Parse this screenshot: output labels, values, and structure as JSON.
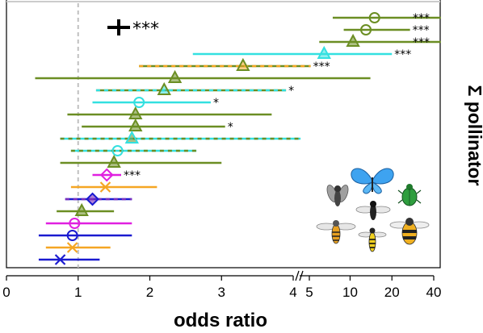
{
  "chart_data": {
    "type": "forest",
    "xlabel": "odds ratio",
    "side_title": "Σ pollinator",
    "xaxis": {
      "scale": "log-broken",
      "left_segment_range": [
        0,
        4
      ],
      "right_segment_range": [
        4,
        45
      ],
      "tick_labels": [
        {
          "value": 0,
          "label": "0",
          "segment": "left"
        },
        {
          "value": 1,
          "label": "1",
          "segment": "left"
        },
        {
          "value": 2,
          "label": "2",
          "segment": "left"
        },
        {
          "value": 3,
          "label": "3",
          "segment": "left"
        },
        {
          "value": 4,
          "label": "4",
          "segment": "left"
        },
        {
          "value": 5,
          "label": "5",
          "segment": "right"
        },
        {
          "value": 10,
          "label": "10",
          "segment": "right"
        },
        {
          "value": 20,
          "label": "20",
          "segment": "right"
        },
        {
          "value": 40,
          "label": "40",
          "segment": "right"
        }
      ],
      "reference_line": 1
    },
    "legend_marker": {
      "symbol": "plus",
      "label": "***"
    },
    "colors": {
      "olive": "#6b8e23",
      "cyan": "#33e0e0",
      "orange": "#f5a623",
      "magenta": "#e020e0",
      "blue": "#1a1ad0",
      "purple": "#7b2fbe",
      "refline": "#c0c0c0"
    },
    "rows": [
      {
        "estimate": 15,
        "lower": 7.5,
        "upper": 45,
        "color": "olive",
        "marker": "circle",
        "sig": "***"
      },
      {
        "estimate": 13,
        "lower": 9,
        "upper": 27,
        "color": "olive",
        "marker": "circle",
        "sig": "***"
      },
      {
        "estimate": 10.5,
        "lower": 6,
        "upper": 45,
        "color": "olive",
        "marker": "triangle",
        "sig": "***"
      },
      {
        "estimate": 6.5,
        "lower": 2.6,
        "upper": 20,
        "color": "cyan",
        "marker": "triangle",
        "sig": "***"
      },
      {
        "estimate": 3.3,
        "lower": 1.85,
        "upper": 5.2,
        "color": "olive",
        "color2": "orange",
        "dashed": true,
        "marker": "triangle",
        "sig": "***"
      },
      {
        "estimate": 2.35,
        "lower": 0.4,
        "upper": 14,
        "color": "olive",
        "marker": "triangle",
        "sig": ""
      },
      {
        "estimate": 2.2,
        "lower": 1.25,
        "upper": 3.9,
        "color": "olive",
        "color2": "cyan",
        "dashed": true,
        "marker": "triangle",
        "sig": "*"
      },
      {
        "estimate": 1.85,
        "lower": 1.2,
        "upper": 2.85,
        "color": "cyan",
        "marker": "circle",
        "sig": "*"
      },
      {
        "estimate": 1.8,
        "lower": 0.85,
        "upper": 3.7,
        "color": "olive",
        "marker": "triangle",
        "sig": ""
      },
      {
        "estimate": 1.8,
        "lower": 1.05,
        "upper": 3.05,
        "color": "olive",
        "marker": "triangle",
        "sig": "*"
      },
      {
        "estimate": 1.75,
        "lower": 0.75,
        "upper": 4.4,
        "color": "cyan",
        "color2": "olive",
        "dashed": true,
        "marker": "triangle",
        "sig": ""
      },
      {
        "estimate": 1.55,
        "lower": 0.9,
        "upper": 2.65,
        "color": "cyan",
        "color2": "olive",
        "dashed": true,
        "marker": "circle",
        "sig": ""
      },
      {
        "estimate": 1.5,
        "lower": 0.75,
        "upper": 3.0,
        "color": "olive",
        "marker": "triangle",
        "sig": ""
      },
      {
        "estimate": 1.4,
        "lower": 1.2,
        "upper": 1.6,
        "color": "magenta",
        "marker": "diamond",
        "sig": "***"
      },
      {
        "estimate": 1.38,
        "lower": 0.9,
        "upper": 2.1,
        "color": "orange",
        "marker": "x",
        "sig": ""
      },
      {
        "estimate": 1.2,
        "lower": 0.82,
        "upper": 1.75,
        "color": "blue",
        "color2": "purple",
        "dashed": true,
        "marker": "diamond",
        "sig": ""
      },
      {
        "estimate": 1.05,
        "lower": 0.7,
        "upper": 1.5,
        "color": "olive",
        "marker": "triangle",
        "sig": ""
      },
      {
        "estimate": 0.95,
        "lower": 0.55,
        "upper": 1.75,
        "color": "magenta",
        "marker": "circle",
        "sig": ""
      },
      {
        "estimate": 0.92,
        "lower": 0.45,
        "upper": 1.75,
        "color": "blue",
        "marker": "circle",
        "sig": ""
      },
      {
        "estimate": 0.92,
        "lower": 0.55,
        "upper": 1.45,
        "color": "orange",
        "marker": "x",
        "sig": ""
      },
      {
        "estimate": 0.75,
        "lower": 0.45,
        "upper": 1.3,
        "color": "blue",
        "marker": "x",
        "sig": ""
      }
    ],
    "insect_icons": [
      "blue-butterfly-icon",
      "green-beetle-icon",
      "grey-fly-icon",
      "black-white-fly-icon",
      "hoverfly-icon",
      "bumblebee-icon",
      "honeybee-icon",
      "striped-hoverfly-icon"
    ]
  }
}
